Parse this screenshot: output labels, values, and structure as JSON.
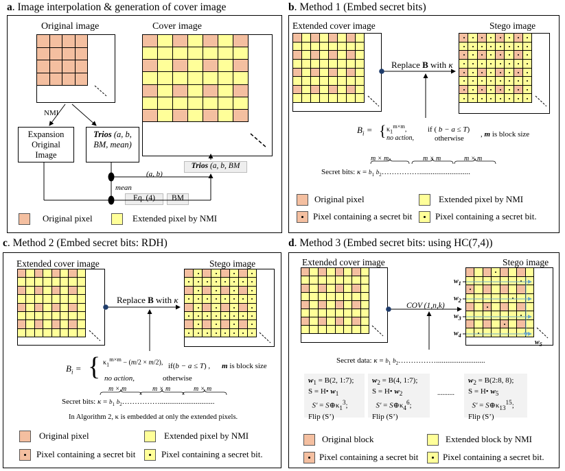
{
  "colors": {
    "original": "#f4bfa0",
    "extended": "#ffff99",
    "border": "#000000",
    "blue": "#6aa8c8"
  },
  "a": {
    "letter": "a",
    "title": ". Image interpolation & generation of cover image",
    "original_image": "Original image",
    "cover_image": "Cover image",
    "nmi": "NMI",
    "expansion": [
      "Expansion",
      "Original",
      "Image"
    ],
    "trios_bold": "Trios",
    "trios_rest": [
      "(a, b,",
      "BM, mean)"
    ],
    "ab": "(a, b)",
    "mean": "mean",
    "eq4": "Eq. (4)",
    "bm": "BM",
    "trios2_bold": "Trios",
    "trios2_rest": "(a, b, BM",
    "legend_original": "Original pixel",
    "legend_extended": "Extended pixel by NMI"
  },
  "b": {
    "letter": "b",
    "title": ". Method 1 (Embed secret bits)",
    "ext_cover": "Extended cover image",
    "stego": "Stego image",
    "replace": "Replace B with κ",
    "bi": "B",
    "sub_i": "i",
    "kappa_sup": "κ",
    "case1": "κ1m×m,",
    "case2": "no action,",
    "cond1": "if ( b − a ≤ T)",
    "cond2": "otherwise",
    "block": ", m is block size",
    "mxm": "m × m",
    "secret": "Secret bits: κ = b1 b2……………...........................",
    "legend_original": "Original pixel",
    "legend_extended": "Extended pixel by NMI",
    "legend_secret1": "Pixel containing a secret bit",
    "legend_secret2": "Pixel containing a secret bit."
  },
  "c": {
    "letter": "c",
    "title": ". Method 2 (Embed secret bits: RDH)",
    "ext_cover": "Extended cover image",
    "stego": "Stego image",
    "replace": "Replace B with κ",
    "bi": "B",
    "case1": "κ1m×m − (m/2 × m/2),",
    "case2": "no action,",
    "cond1": "if(b − a ≤ T)  ,",
    "cond2": "otherwise",
    "block": "m is block size",
    "mxm": "m × m",
    "secret": "Secret bits: κ = b1 b2…………….............................",
    "note": "In Algorithm 2, κ is embedded at only the extended pixels.",
    "legend_original": "Original pixel",
    "legend_extended": "Extended pixel by NMI",
    "legend_secret1": "Pixel containing a secret bit",
    "legend_secret2": "Pixel containing a secret bit."
  },
  "d": {
    "letter": "d",
    "title": ". Method 3 (Embed secret bits: using HC(7,4))",
    "ext_cover": "Extended cover image",
    "stego": "Stego image",
    "cov": "COV (1,n,k)",
    "secret": "Secret data: κ = b1 b2……………..........................",
    "w_labels": [
      "w1",
      "w2",
      "w3",
      "w4",
      "w5"
    ],
    "eq1": [
      "w1 = B(2, 1:7);",
      "S = H• w1",
      "S′ = S⊕κ13;",
      "Flip (S’)"
    ],
    "eq2": [
      "w2 = B(4, 1:7);",
      "S = H• w2",
      "S′ = S⊕κ46;",
      "Flip (S’)"
    ],
    "dots": "..........",
    "eq3": [
      "w2 = B(2:8, 8);",
      "S = H• w5",
      "S′ = S⊕κ1315;",
      "Flip (S’)"
    ],
    "legend_original": "Original block",
    "legend_extended": "Extended block by NMI",
    "legend_secret1": "Pixel containing a secret bit",
    "legend_secret2": "Pixel containing a secret bit."
  }
}
